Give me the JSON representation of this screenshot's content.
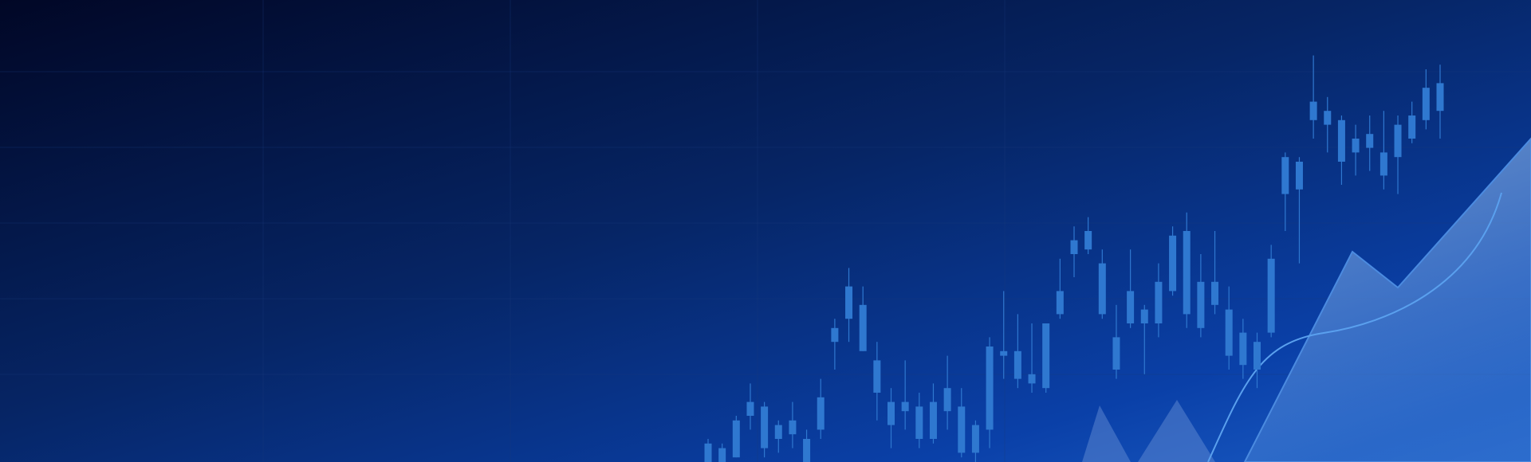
{
  "chart_data": {
    "type": "candlestick",
    "color": "#2f78d0",
    "ylim": [
      0,
      100
    ],
    "categories": [
      null,
      null,
      null,
      null,
      null,
      null,
      null,
      null,
      null,
      null,
      null,
      null,
      null,
      null,
      null,
      null,
      null,
      null,
      null,
      null,
      null,
      null,
      null,
      null,
      null,
      null,
      null,
      null,
      null,
      null,
      null,
      null,
      null,
      null,
      null,
      null,
      null,
      null,
      null,
      null,
      null,
      null,
      null,
      null,
      null,
      null,
      null,
      null,
      null,
      null,
      null,
      null,
      null
    ],
    "high": [
      5,
      4,
      10,
      17,
      13,
      9,
      13,
      7,
      18,
      31,
      42,
      38,
      26,
      16,
      22,
      15,
      17,
      23,
      16,
      9,
      27,
      37,
      32,
      30,
      30,
      44,
      51,
      53,
      46,
      34,
      46,
      34,
      43,
      51,
      54,
      45,
      50,
      38,
      31,
      28,
      47,
      67,
      66,
      88,
      79,
      75,
      73,
      75,
      76,
      75,
      78,
      85,
      86
    ],
    "close": [
      4,
      3,
      9,
      13,
      12,
      8,
      9,
      5,
      14,
      29,
      38,
      34,
      22,
      13,
      13,
      12,
      13,
      16,
      12,
      8,
      25,
      24,
      24,
      19,
      30,
      37,
      48,
      50,
      43,
      27,
      37,
      33,
      39,
      49,
      50,
      39,
      39,
      33,
      28,
      26,
      44,
      66,
      65,
      78,
      76,
      74,
      70,
      71,
      67,
      73,
      75,
      81,
      82
    ],
    "open": [
      0,
      0,
      1,
      10,
      3,
      5,
      6,
      0,
      7,
      26,
      31,
      24,
      15,
      8,
      11,
      5,
      5,
      11,
      2,
      2,
      7,
      23,
      18,
      17,
      16,
      32,
      45,
      46,
      32,
      20,
      30,
      30,
      30,
      37,
      32,
      29,
      34,
      23,
      21,
      20,
      28,
      58,
      59,
      74,
      73,
      65,
      67,
      68,
      62,
      66,
      70,
      74,
      76
    ],
    "low": [
      0,
      0,
      1,
      7,
      1,
      2,
      3,
      0,
      5,
      20,
      26,
      24,
      9,
      3,
      7,
      3,
      4,
      7,
      1,
      0,
      3,
      18,
      16,
      15,
      15,
      31,
      40,
      45,
      31,
      18,
      29,
      19,
      27,
      36,
      29,
      27,
      32,
      20,
      18,
      16,
      27,
      50,
      43,
      70,
      67,
      60,
      62,
      63,
      59,
      58,
      69,
      72,
      70
    ]
  }
}
